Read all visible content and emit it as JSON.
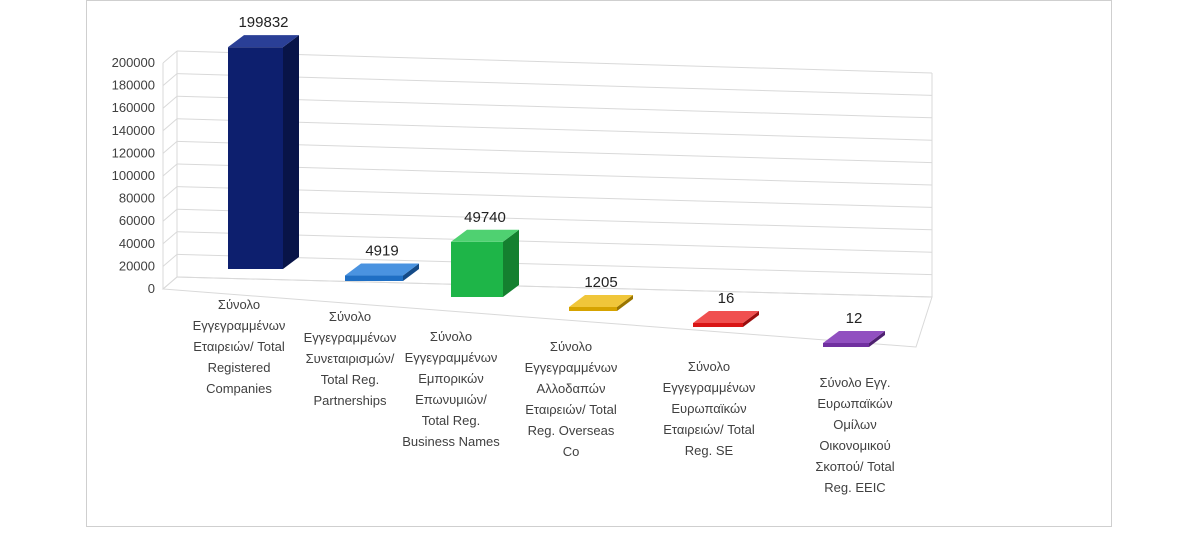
{
  "chart_data": {
    "type": "bar",
    "title": "",
    "xlabel": "",
    "ylabel": "",
    "ylim": [
      0,
      200000
    ],
    "y_ticks": [
      "0",
      "20000",
      "40000",
      "60000",
      "80000",
      "100000",
      "120000",
      "140000",
      "160000",
      "180000",
      "200000"
    ],
    "grid": true,
    "legend": "none",
    "categories": [
      [
        "Σύνολο",
        "Εγγεγραμμένων",
        "Εταιρειών/ Total",
        "Registered",
        "Companies"
      ],
      [
        "Σύνολο",
        "Εγγεγραμμένων",
        "Συνεταιρισμών/",
        "Total Reg.",
        "Partnerships"
      ],
      [
        "Σύνολο",
        "Εγγεγραμμένων",
        "Εμπορικών",
        "Επωνυμιών/",
        "Total Reg.",
        "Business Names"
      ],
      [
        "Σύνολο",
        "Εγγεγραμμένων",
        "Αλλοδαπών",
        "Εταιρειών/ Total",
        "Reg. Overseas",
        "Co"
      ],
      [
        "Σύνολο",
        "Εγγεγραμμένων",
        "Ευρωπαϊκών",
        "Εταιρειών/ Total",
        "Reg. SE"
      ],
      [
        "Σύνολο Εγγ.",
        "Ευρωπαϊκών",
        "Ομίλων",
        "Οικονομικού",
        "Σκοπού/ Total",
        "Reg. EEIC"
      ]
    ],
    "values": [
      199832,
      4919,
      49740,
      1205,
      16,
      12
    ],
    "data_labels": [
      "199832",
      "4919",
      "49740",
      "1205",
      "16",
      "12"
    ],
    "colors": [
      "#0d1f6e",
      "#1f6fc4",
      "#1eb548",
      "#d6a300",
      "#d91616",
      "#7030a0"
    ],
    "side_colors": [
      "#081448",
      "#144a87",
      "#14802f",
      "#9a7500",
      "#9a0e0e",
      "#4e2170"
    ],
    "top_colors": [
      "#2a3f96",
      "#4a93e0",
      "#4fd171",
      "#f0c63a",
      "#f05050",
      "#9150c0"
    ]
  }
}
